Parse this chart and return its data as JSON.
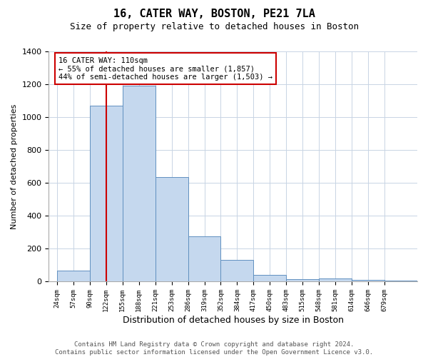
{
  "title1": "16, CATER WAY, BOSTON, PE21 7LA",
  "title2": "Size of property relative to detached houses in Boston",
  "xlabel": "Distribution of detached houses by size in Boston",
  "ylabel": "Number of detached properties",
  "categories": [
    "24sqm",
    "57sqm",
    "90sqm",
    "122sqm",
    "155sqm",
    "188sqm",
    "221sqm",
    "253sqm",
    "286sqm",
    "319sqm",
    "352sqm",
    "384sqm",
    "417sqm",
    "450sqm",
    "483sqm",
    "515sqm",
    "548sqm",
    "581sqm",
    "614sqm",
    "646sqm",
    "679sqm"
  ],
  "bin_heights": [
    65,
    1070,
    1190,
    635,
    275,
    130,
    40,
    15,
    20,
    10,
    5
  ],
  "bar_color": "#c5d8ee",
  "bar_edge_color": "#6090c0",
  "vline_color": "#cc0000",
  "annotation_text": "16 CATER WAY: 110sqm\n← 55% of detached houses are smaller (1,857)\n44% of semi-detached houses are larger (1,503) →",
  "ylim": [
    0,
    1400
  ],
  "yticks": [
    0,
    200,
    400,
    600,
    800,
    1000,
    1200,
    1400
  ],
  "bg_color": "#ffffff",
  "grid_color": "#c8d4e4",
  "footer1": "Contains HM Land Registry data © Crown copyright and database right 2024.",
  "footer2": "Contains public sector information licensed under the Open Government Licence v3.0."
}
